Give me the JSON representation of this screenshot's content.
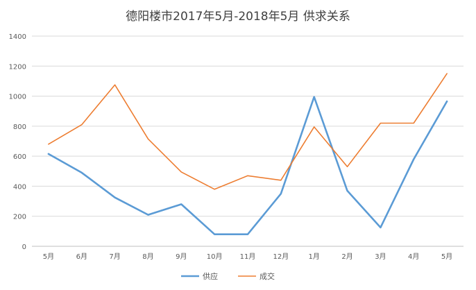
{
  "chart_data": {
    "type": "line",
    "title": "德阳楼市2017年5月-2018年5月 供求关系",
    "categories": [
      "5月",
      "6月",
      "7月",
      "8月",
      "9月",
      "10月",
      "11月",
      "12月",
      "1月",
      "2月",
      "3月",
      "4月",
      "5月"
    ],
    "series": [
      {
        "name": "供应",
        "color": "#5b9bd5",
        "values": [
          615,
          490,
          325,
          210,
          280,
          80,
          80,
          350,
          995,
          370,
          125,
          580,
          965
        ]
      },
      {
        "name": "成交",
        "color": "#ed7d31",
        "values": [
          680,
          810,
          1075,
          715,
          495,
          380,
          470,
          440,
          795,
          530,
          820,
          820,
          1150
        ]
      }
    ],
    "ylim": [
      0,
      1400
    ],
    "yticks": [
      "0",
      "200",
      "400",
      "600",
      "800",
      "1000",
      "1200",
      "1400"
    ],
    "grid": true,
    "legend_position": "bottom"
  }
}
